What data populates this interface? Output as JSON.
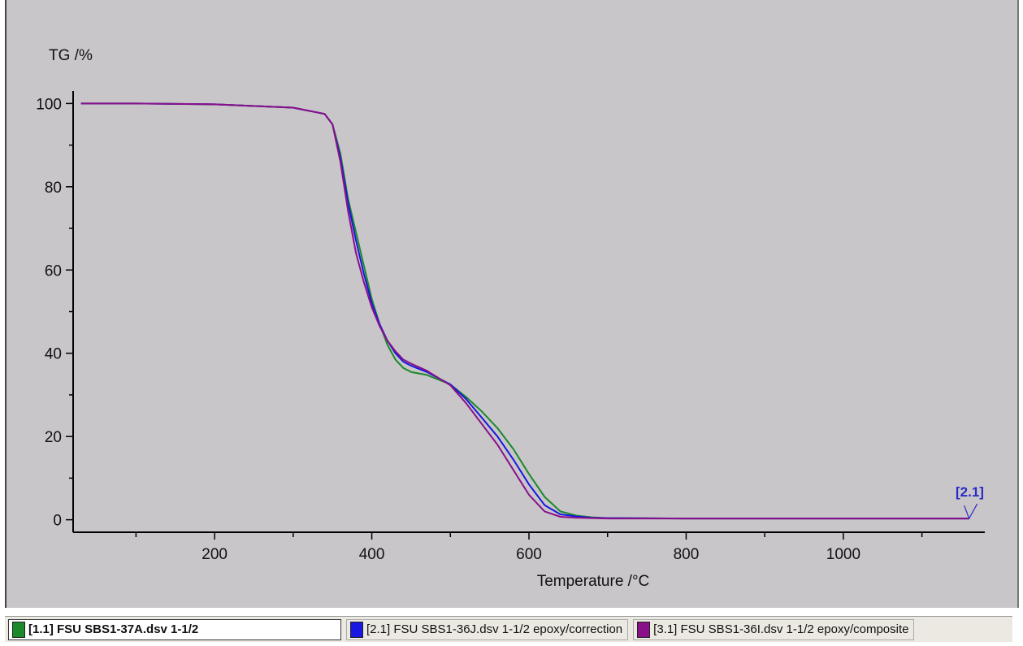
{
  "chart_data": {
    "type": "line",
    "ylabel": "TG /%",
    "xlabel": "Temperature /°C",
    "xlim": [
      20,
      1180
    ],
    "ylim": [
      -3,
      103
    ],
    "x_ticks": [
      200,
      400,
      600,
      800,
      1000
    ],
    "y_ticks": [
      0,
      20,
      40,
      60,
      80,
      100
    ],
    "grid": false,
    "series": [
      {
        "name": "[1.1] FSU SBS1-37A.dsv 1-1/2",
        "color": "#1a8a2a",
        "x": [
          30,
          100,
          200,
          300,
          340,
          350,
          360,
          370,
          380,
          390,
          400,
          410,
          420,
          430,
          440,
          450,
          470,
          500,
          520,
          540,
          560,
          580,
          600,
          620,
          640,
          660,
          680,
          700,
          800,
          1000,
          1160
        ],
        "y": [
          100,
          100,
          99.8,
          99,
          97.5,
          95,
          88,
          77,
          69,
          61,
          53,
          47,
          42,
          38.5,
          36.5,
          35.5,
          34.8,
          32.5,
          29.5,
          26,
          22,
          17,
          11,
          5.5,
          2,
          1,
          0.6,
          0.4,
          0.3,
          0.3,
          0.3
        ]
      },
      {
        "name": "[2.1] FSU SBS1-36J.dsv 1-1/2  epoxy/correction",
        "color": "#1818e0",
        "x": [
          30,
          100,
          200,
          300,
          340,
          350,
          360,
          370,
          380,
          390,
          400,
          410,
          420,
          430,
          440,
          450,
          470,
          500,
          520,
          540,
          560,
          580,
          600,
          620,
          640,
          660,
          680,
          700,
          800,
          1000,
          1160
        ],
        "y": [
          100,
          100,
          99.8,
          99,
          97.5,
          95,
          87,
          76,
          67,
          59,
          52,
          47,
          43,
          40,
          38,
          37,
          35.5,
          32.5,
          29,
          24.5,
          20,
          14.5,
          8.5,
          3.5,
          1.3,
          0.8,
          0.5,
          0.4,
          0.3,
          0.3,
          0.3
        ]
      },
      {
        "name": "[3.1] FSU SBS1-36I.dsv 1-1/2   epoxy/composite",
        "color": "#8a108a",
        "x": [
          30,
          100,
          200,
          300,
          340,
          350,
          360,
          370,
          380,
          390,
          400,
          410,
          420,
          430,
          440,
          450,
          470,
          500,
          520,
          540,
          560,
          580,
          600,
          620,
          640,
          660,
          680,
          700,
          800,
          1000,
          1160
        ],
        "y": [
          100,
          100,
          99.8,
          99,
          97.5,
          95,
          86,
          74,
          64,
          57,
          51,
          46.5,
          43,
          40.5,
          38.5,
          37.5,
          35.8,
          32.3,
          28,
          23,
          18,
          12,
          6,
          2,
          0.7,
          0.5,
          0.4,
          0.3,
          0.3,
          0.3,
          0.3
        ]
      }
    ],
    "annotation": "[2.1]"
  },
  "legend": {
    "items": [
      {
        "label": "[1.1] FSU SBS1-37A.dsv 1-1/2",
        "color": "#1a8a2a"
      },
      {
        "label": "[2.1] FSU SBS1-36J.dsv 1-1/2  epoxy/correction",
        "color": "#1818e0"
      },
      {
        "label": "[3.1] FSU SBS1-36I.dsv 1-1/2   epoxy/composite",
        "color": "#8a108a"
      }
    ]
  }
}
